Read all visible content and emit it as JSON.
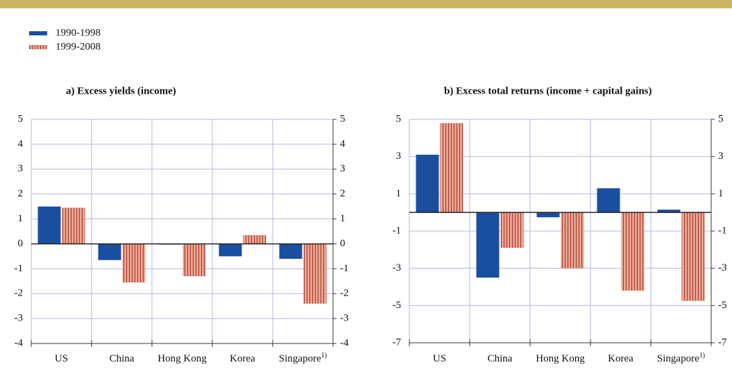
{
  "chart_data": [
    {
      "type": "bar",
      "title": "a) Excess yields (income)",
      "categories": [
        "US",
        "China",
        "Hong Kong",
        "Korea",
        "Singapore"
      ],
      "footnote_marker": "1)",
      "series": [
        {
          "name": "1990-1998",
          "color": "#1a4e9f",
          "values": [
            1.5,
            -0.65,
            -0.03,
            -0.5,
            -0.6
          ]
        },
        {
          "name": "1999-2008",
          "color": "#e9a590",
          "values": [
            1.45,
            -1.55,
            -1.3,
            0.35,
            -2.4
          ]
        }
      ],
      "ylim": [
        -4,
        5
      ],
      "yticks": [
        -4,
        -3,
        -2,
        -1,
        0,
        1,
        2,
        3,
        4,
        5
      ],
      "grid": true
    },
    {
      "type": "bar",
      "title": "b) Excess total returns (income + capital gains)",
      "categories": [
        "US",
        "China",
        "Hong Kong",
        "Korea",
        "Singapore"
      ],
      "footnote_marker": "1)",
      "series": [
        {
          "color": "#1a4e9f",
          "values": [
            3.1,
            -3.5,
            -0.26,
            1.3,
            0.15
          ]
        },
        {
          "color": "#e9a590",
          "values": [
            4.8,
            -1.9,
            -3.0,
            -4.2,
            -4.75
          ]
        }
      ],
      "ylim": [
        -7,
        5
      ],
      "yticks": [
        -7,
        -5,
        -3,
        -1,
        1,
        3,
        5
      ],
      "grid": true
    }
  ]
}
